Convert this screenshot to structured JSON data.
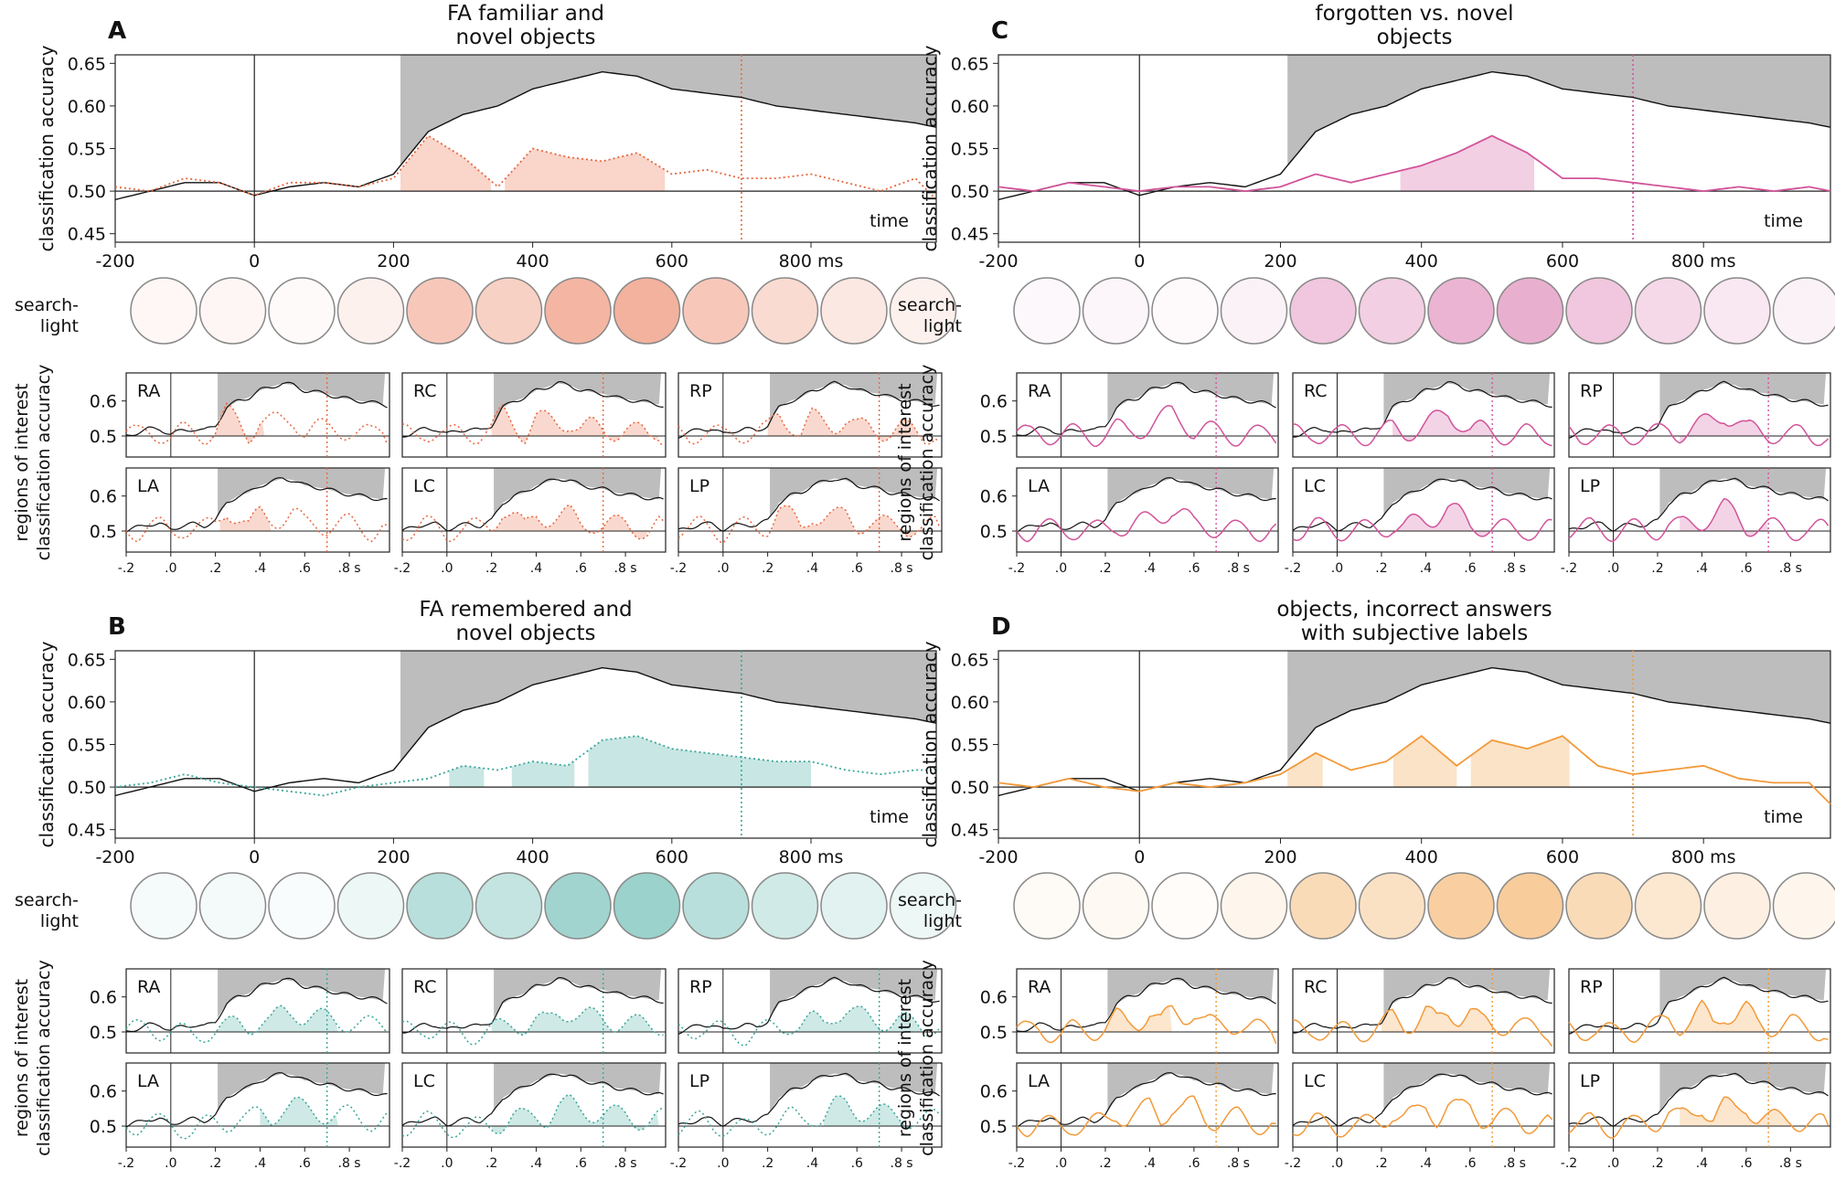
{
  "panels_letters": [
    "A",
    "B",
    "C",
    "D"
  ],
  "colors": {
    "A": "#e8673f",
    "B": "#3aa69a",
    "C": "#d1549a",
    "D": "#f29a3a",
    "gray": "#bdbdbd",
    "ref": "#111111"
  },
  "labels": {
    "main_ylabel": "classification accuracy",
    "roi_ylabel_1": "regions of interest",
    "roi_ylabel_2": "classification accuracy",
    "searchlight_1": "search-",
    "searchlight_2": "light",
    "time": "time",
    "roi_names": [
      "RA",
      "RC",
      "RP",
      "LA",
      "LC",
      "LP"
    ]
  },
  "chart_data": {
    "type": "line",
    "main_axis": {
      "xlim": [
        -200,
        980
      ],
      "ylim": [
        0.44,
        0.66
      ],
      "xticks": [
        -200,
        0,
        200,
        400,
        600,
        800
      ],
      "xtick_labels": [
        "-200",
        "0",
        "200",
        "400",
        "600",
        "800 ms"
      ],
      "yticks": [
        0.45,
        0.5,
        0.55,
        0.6,
        0.65
      ],
      "ytick_labels": [
        "0.45",
        "0.50",
        "0.55",
        "0.60",
        "0.65"
      ]
    },
    "roi_axis": {
      "xlim": [
        -0.2,
        0.98
      ],
      "ylim": [
        0.44,
        0.68
      ],
      "xticks": [
        -0.2,
        0,
        0.2,
        0.4,
        0.6,
        0.8
      ],
      "xtick_labels": [
        "-.2",
        ".0",
        ".2",
        ".4",
        ".6",
        ".8 s"
      ],
      "yticks": [
        0.5,
        0.6
      ],
      "ytick_labels": [
        "0.5",
        "0.6"
      ]
    },
    "reference_series": {
      "name": "reference (black line)",
      "x": [
        -200,
        -150,
        -100,
        -50,
        0,
        50,
        100,
        150,
        200,
        250,
        300,
        350,
        400,
        450,
        500,
        550,
        600,
        650,
        700,
        750,
        800,
        850,
        900,
        950,
        980
      ],
      "y": [
        0.49,
        0.5,
        0.51,
        0.51,
        0.495,
        0.505,
        0.51,
        0.505,
        0.52,
        0.57,
        0.59,
        0.6,
        0.62,
        0.63,
        0.64,
        0.635,
        0.62,
        0.615,
        0.61,
        0.6,
        0.595,
        0.59,
        0.585,
        0.58,
        0.575
      ],
      "gray_significance_start": 210
    },
    "chance_level": 0.5,
    "vline_ms": 700,
    "panels": [
      {
        "letter": "A",
        "title_1": "FA familiar and",
        "title_2": "novel objects",
        "line_style": "dotted",
        "color": "#e8673f",
        "x": [
          -200,
          -150,
          -100,
          -50,
          0,
          50,
          100,
          150,
          200,
          250,
          300,
          350,
          400,
          450,
          500,
          550,
          600,
          650,
          700,
          750,
          800,
          850,
          900,
          950,
          980
        ],
        "y": [
          0.505,
          0.5,
          0.515,
          0.51,
          0.495,
          0.51,
          0.51,
          0.505,
          0.515,
          0.565,
          0.54,
          0.505,
          0.55,
          0.54,
          0.535,
          0.545,
          0.52,
          0.525,
          0.515,
          0.515,
          0.52,
          0.51,
          0.5,
          0.515,
          0.49
        ],
        "significant_ranges": [
          [
            210,
            340
          ],
          [
            360,
            590
          ]
        ],
        "roi_shaded": [
          [
            0.18,
            0.42
          ],
          [
            0.2,
            0.95
          ],
          [
            0.2,
            0.9
          ],
          [
            0.22,
            0.45
          ],
          [
            0.2,
            0.9
          ],
          [
            0.22,
            0.9
          ]
        ]
      },
      {
        "letter": "B",
        "title_1": "FA remembered and",
        "title_2": "novel objects",
        "line_style": "dotted",
        "color": "#3aa69a",
        "x": [
          -200,
          -150,
          -100,
          -50,
          0,
          50,
          100,
          150,
          200,
          250,
          300,
          350,
          400,
          450,
          500,
          550,
          600,
          650,
          700,
          750,
          800,
          850,
          900,
          950,
          980
        ],
        "y": [
          0.5,
          0.505,
          0.515,
          0.505,
          0.5,
          0.495,
          0.49,
          0.5,
          0.505,
          0.51,
          0.525,
          0.52,
          0.53,
          0.525,
          0.555,
          0.56,
          0.545,
          0.54,
          0.535,
          0.53,
          0.53,
          0.52,
          0.515,
          0.52,
          0.52
        ],
        "significant_ranges": [
          [
            280,
            330
          ],
          [
            370,
            460
          ],
          [
            480,
            800
          ]
        ],
        "roi_shaded": [
          [
            0.2,
            0.75
          ],
          [
            0.2,
            0.95
          ],
          [
            0.25,
            0.9
          ],
          [
            0.4,
            0.75
          ],
          [
            0.2,
            0.95
          ],
          [
            0.45,
            0.85
          ]
        ]
      },
      {
        "letter": "C",
        "title_1": "forgotten vs. novel",
        "title_2": "objects",
        "line_style": "solid",
        "color": "#d1549a",
        "x": [
          -200,
          -150,
          -100,
          -50,
          0,
          50,
          100,
          150,
          200,
          250,
          300,
          350,
          400,
          450,
          500,
          550,
          600,
          650,
          700,
          750,
          800,
          850,
          900,
          950,
          980
        ],
        "y": [
          0.505,
          0.5,
          0.51,
          0.505,
          0.5,
          0.505,
          0.505,
          0.5,
          0.505,
          0.52,
          0.51,
          0.52,
          0.53,
          0.545,
          0.565,
          0.545,
          0.515,
          0.515,
          0.51,
          0.505,
          0.5,
          0.505,
          0.5,
          0.505,
          0.5
        ],
        "significant_ranges": [
          [
            370,
            560
          ]
        ],
        "roi_shaded": [
          [
            0,
            0
          ],
          [
            0.25,
            0.7
          ],
          [
            0.3,
            0.7
          ],
          [
            0,
            0
          ],
          [
            0.25,
            0.7
          ],
          [
            0.3,
            0.7
          ]
        ]
      },
      {
        "letter": "D",
        "title_1": "objects, incorrect answers",
        "title_2": "with subjective labels",
        "line_style": "solid",
        "color": "#f29a3a",
        "x": [
          -200,
          -150,
          -100,
          -50,
          0,
          50,
          100,
          150,
          200,
          250,
          300,
          350,
          400,
          450,
          500,
          550,
          600,
          650,
          700,
          750,
          800,
          850,
          900,
          950,
          980
        ],
        "y": [
          0.505,
          0.5,
          0.51,
          0.5,
          0.495,
          0.505,
          0.5,
          0.505,
          0.515,
          0.54,
          0.52,
          0.53,
          0.56,
          0.525,
          0.555,
          0.545,
          0.56,
          0.525,
          0.515,
          0.52,
          0.525,
          0.51,
          0.505,
          0.505,
          0.48
        ],
        "significant_ranges": [
          [
            210,
            260
          ],
          [
            360,
            450
          ],
          [
            470,
            610
          ]
        ],
        "roi_shaded": [
          [
            0.2,
            0.5
          ],
          [
            0.2,
            0.7
          ],
          [
            0.3,
            0.7
          ],
          [
            0,
            0
          ],
          [
            0,
            0
          ],
          [
            0.3,
            0.8
          ]
        ]
      }
    ]
  }
}
